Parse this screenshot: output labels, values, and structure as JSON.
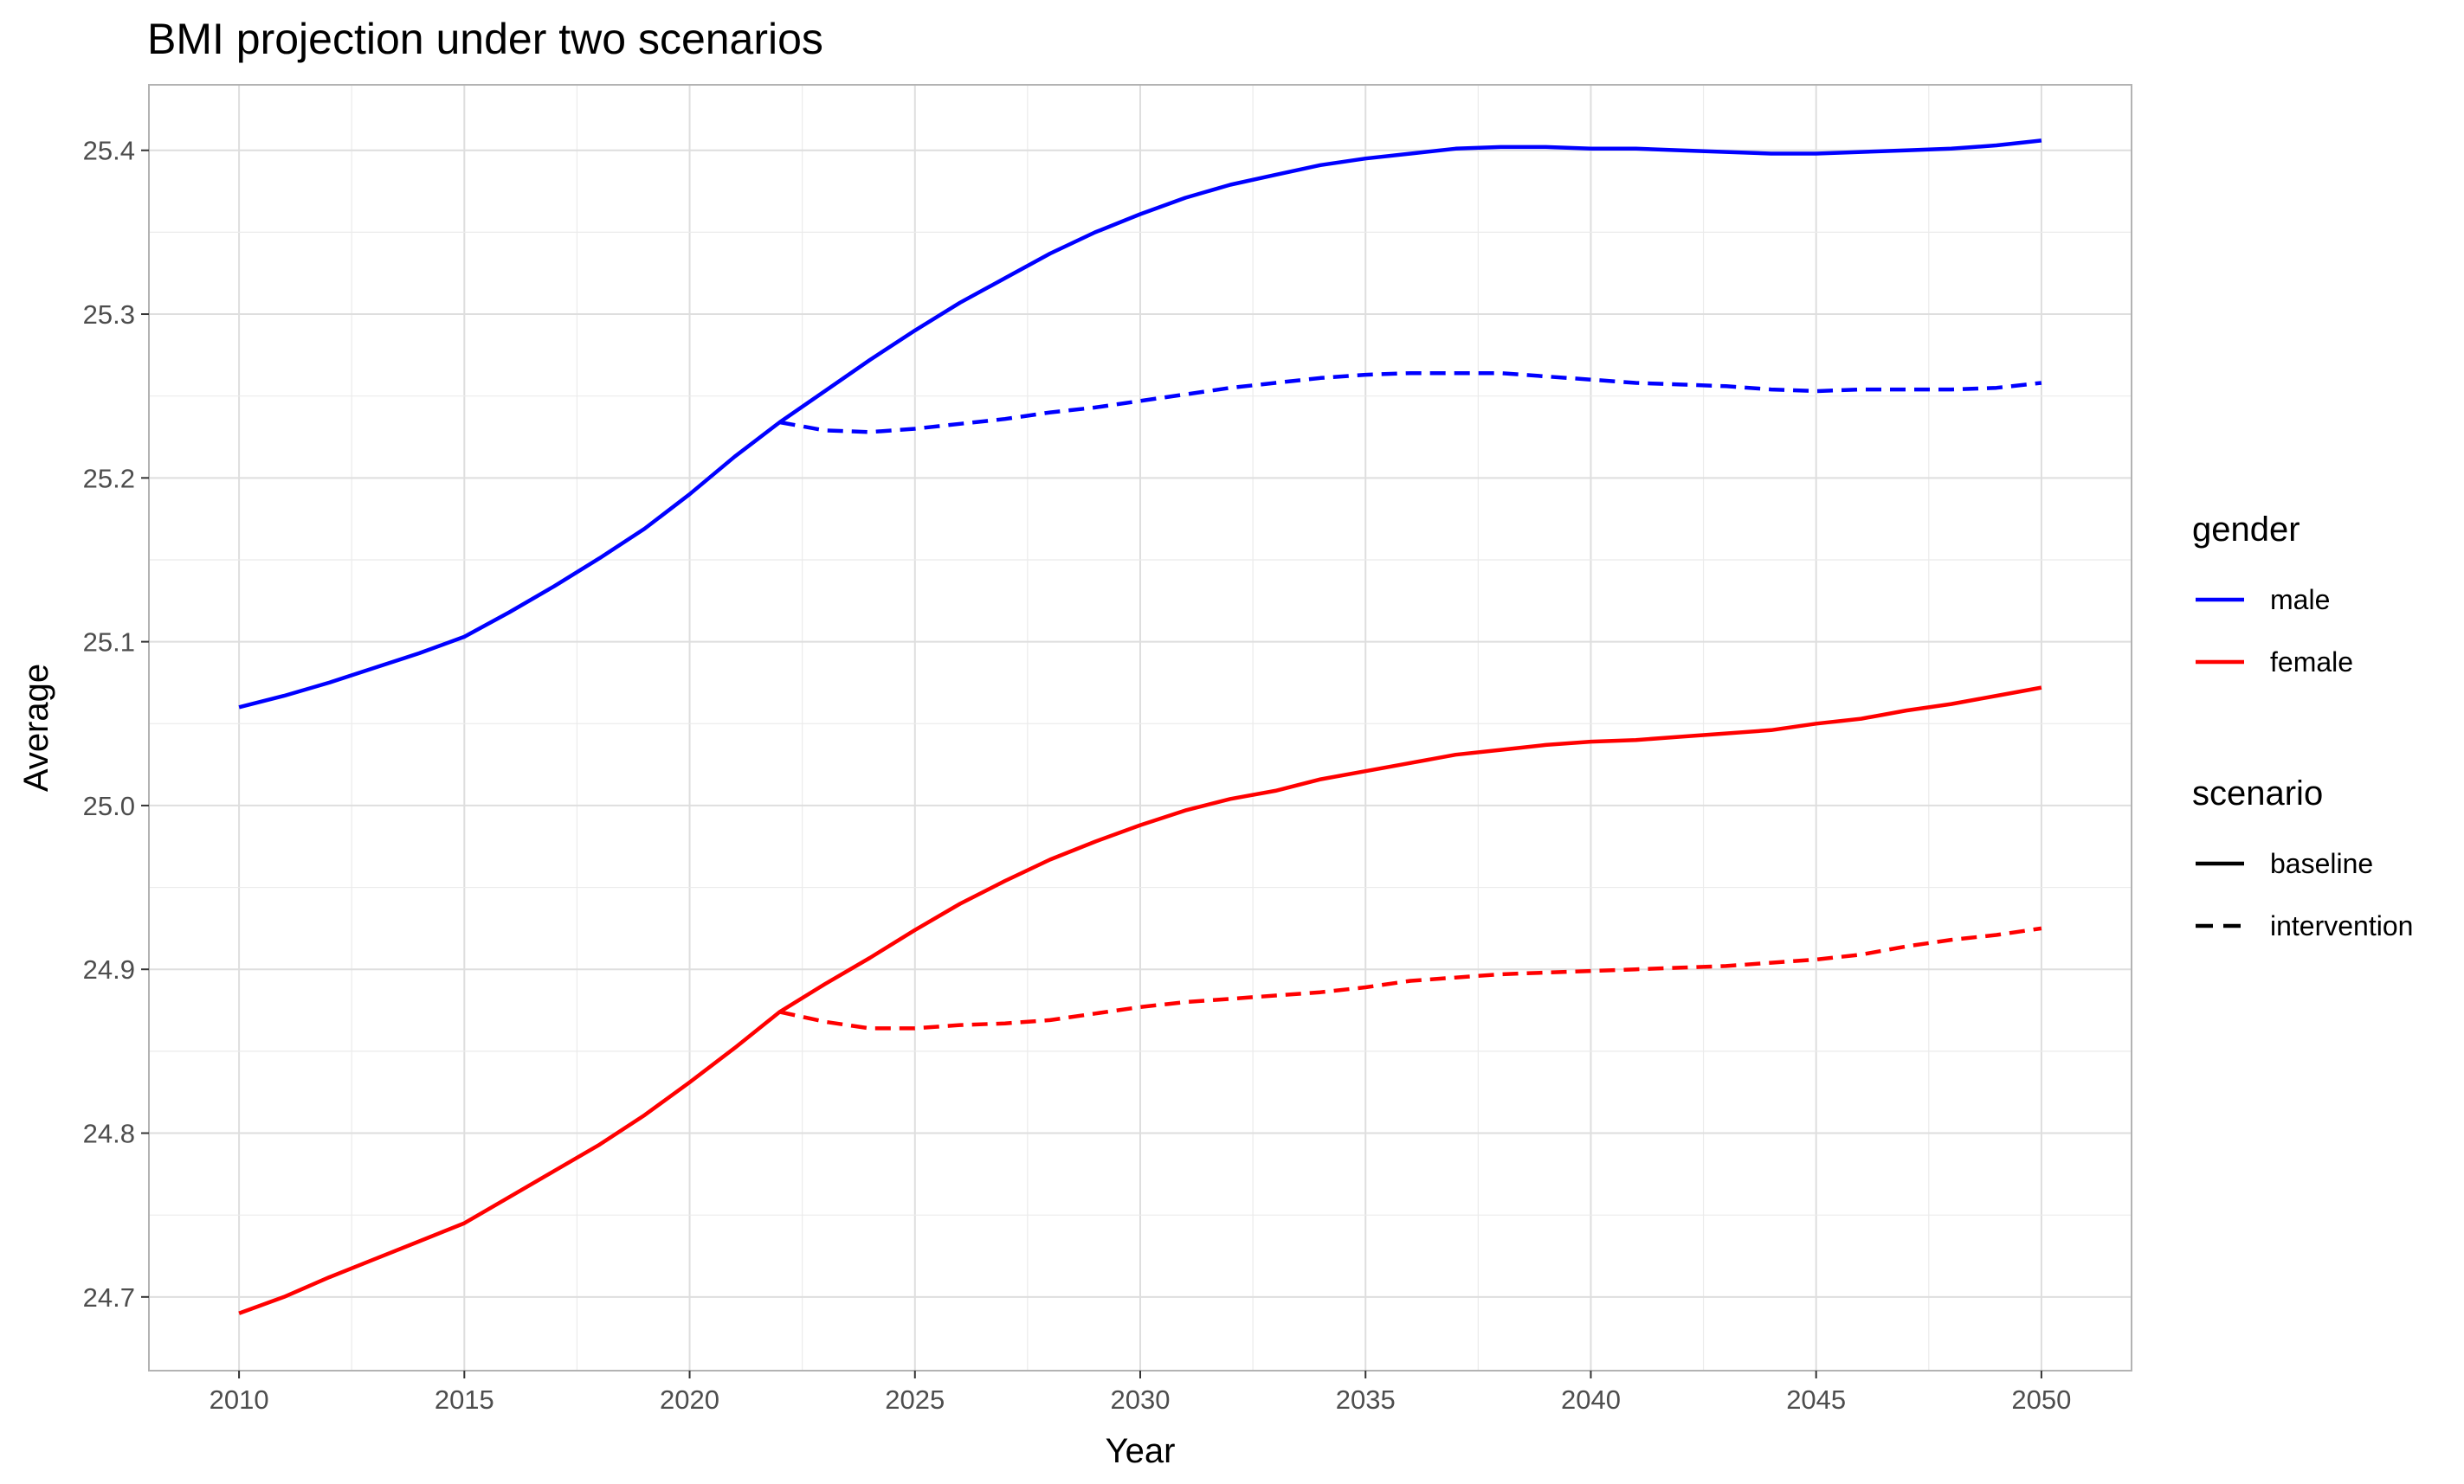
{
  "chart_data": {
    "type": "line",
    "title": "BMI  projection under two scenarios",
    "xlabel": "Year",
    "ylabel": "Average",
    "xlim": [
      2008,
      2052
    ],
    "ylim": [
      24.655,
      25.44
    ],
    "x_ticks": [
      2010,
      2015,
      2020,
      2025,
      2030,
      2035,
      2040,
      2045,
      2050
    ],
    "x_tick_labels": [
      "2010",
      "2015",
      "2020",
      "2025",
      "2030",
      "2035",
      "2040",
      "2045",
      "2050"
    ],
    "y_ticks": [
      24.7,
      24.8,
      24.9,
      25.0,
      25.1,
      25.2,
      25.3,
      25.4
    ],
    "y_tick_labels": [
      "24.7",
      "24.8",
      "24.9",
      "25.0",
      "25.1",
      "25.2",
      "25.3",
      "25.4"
    ],
    "grid": true,
    "legend_placement": "right",
    "legends": [
      {
        "title": "gender",
        "entries": [
          {
            "label": "male",
            "color": "#0000ff",
            "linestyle": "solid"
          },
          {
            "label": "female",
            "color": "#ff0000",
            "linestyle": "solid"
          }
        ]
      },
      {
        "title": "scenario",
        "entries": [
          {
            "label": "baseline",
            "color": "#000000",
            "linestyle": "solid"
          },
          {
            "label": "intervention",
            "color": "#000000",
            "linestyle": "dashed"
          }
        ]
      }
    ],
    "series": [
      {
        "gender": "male",
        "scenario": "baseline",
        "color": "#0000ff",
        "linestyle": "solid",
        "x": [
          2010,
          2011,
          2012,
          2013,
          2014,
          2015,
          2016,
          2017,
          2018,
          2019,
          2020,
          2021,
          2022,
          2023,
          2024,
          2025,
          2026,
          2027,
          2028,
          2029,
          2030,
          2031,
          2032,
          2033,
          2034,
          2035,
          2036,
          2037,
          2038,
          2039,
          2040,
          2041,
          2042,
          2043,
          2044,
          2045,
          2046,
          2047,
          2048,
          2049,
          2050
        ],
        "y": [
          25.06,
          25.067,
          25.075,
          25.084,
          25.093,
          25.103,
          25.118,
          25.134,
          25.151,
          25.169,
          25.19,
          25.213,
          25.234,
          25.253,
          25.272,
          25.29,
          25.307,
          25.322,
          25.337,
          25.35,
          25.361,
          25.371,
          25.379,
          25.385,
          25.391,
          25.395,
          25.398,
          25.401,
          25.402,
          25.402,
          25.401,
          25.401,
          25.4,
          25.399,
          25.398,
          25.398,
          25.399,
          25.4,
          25.401,
          25.403,
          25.406
        ]
      },
      {
        "gender": "male",
        "scenario": "intervention",
        "color": "#0000ff",
        "linestyle": "dashed",
        "x": [
          2022,
          2023,
          2024,
          2025,
          2026,
          2027,
          2028,
          2029,
          2030,
          2031,
          2032,
          2033,
          2034,
          2035,
          2036,
          2037,
          2038,
          2039,
          2040,
          2041,
          2042,
          2043,
          2044,
          2045,
          2046,
          2047,
          2048,
          2049,
          2050
        ],
        "y": [
          25.234,
          25.229,
          25.228,
          25.23,
          25.233,
          25.236,
          25.24,
          25.243,
          25.247,
          25.251,
          25.255,
          25.258,
          25.261,
          25.263,
          25.264,
          25.264,
          25.264,
          25.262,
          25.26,
          25.258,
          25.257,
          25.256,
          25.254,
          25.253,
          25.254,
          25.254,
          25.254,
          25.255,
          25.258
        ]
      },
      {
        "gender": "female",
        "scenario": "baseline",
        "color": "#ff0000",
        "linestyle": "solid",
        "x": [
          2010,
          2011,
          2012,
          2013,
          2014,
          2015,
          2016,
          2017,
          2018,
          2019,
          2020,
          2021,
          2022,
          2023,
          2024,
          2025,
          2026,
          2027,
          2028,
          2029,
          2030,
          2031,
          2032,
          2033,
          2034,
          2035,
          2036,
          2037,
          2038,
          2039,
          2040,
          2041,
          2042,
          2043,
          2044,
          2045,
          2046,
          2047,
          2048,
          2049,
          2050
        ],
        "y": [
          24.69,
          24.7,
          24.712,
          24.723,
          24.734,
          24.745,
          24.761,
          24.777,
          24.793,
          24.811,
          24.831,
          24.852,
          24.874,
          24.891,
          24.907,
          24.924,
          24.94,
          24.954,
          24.967,
          24.978,
          24.988,
          24.997,
          25.004,
          25.009,
          25.016,
          25.021,
          25.026,
          25.031,
          25.034,
          25.037,
          25.039,
          25.04,
          25.042,
          25.044,
          25.046,
          25.05,
          25.053,
          25.058,
          25.062,
          25.067,
          25.072
        ]
      },
      {
        "gender": "female",
        "scenario": "intervention",
        "color": "#ff0000",
        "linestyle": "dashed",
        "x": [
          2022,
          2023,
          2024,
          2025,
          2026,
          2027,
          2028,
          2029,
          2030,
          2031,
          2032,
          2033,
          2034,
          2035,
          2036,
          2037,
          2038,
          2039,
          2040,
          2041,
          2042,
          2043,
          2044,
          2045,
          2046,
          2047,
          2048,
          2049,
          2050
        ],
        "y": [
          24.874,
          24.868,
          24.864,
          24.864,
          24.866,
          24.867,
          24.869,
          24.873,
          24.877,
          24.88,
          24.882,
          24.884,
          24.886,
          24.889,
          24.893,
          24.895,
          24.897,
          24.898,
          24.899,
          24.9,
          24.901,
          24.902,
          24.904,
          24.906,
          24.909,
          24.914,
          24.918,
          24.921,
          24.925
        ]
      }
    ]
  }
}
